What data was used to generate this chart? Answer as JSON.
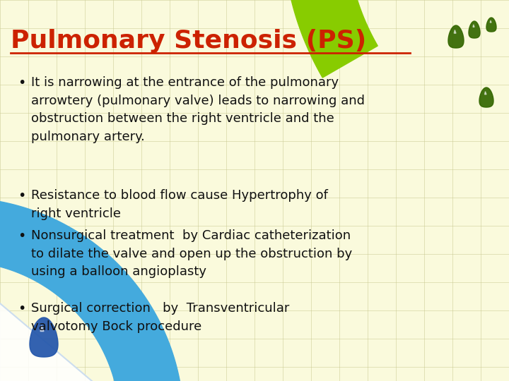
{
  "title": "Pulmonary Stenosis (PS)",
  "title_color": "#CC2200",
  "title_underline": true,
  "background_color": "#FAFADC",
  "grid_color": "#C8C890",
  "bullet1": "It is narrowing at the entrance of the pulmonary\narrowtery (pulmonary valve) leads to narrowing and\nobstruction between the right ventricle and the\npulmonary artery.",
  "bullet2": "Resistance to blood flow cause Hypertrophy of\nright ventricle",
  "bullet3": "Nonsurgical treatment  by Cardiac catheterization\nto dilate the valve and open up the obstruction by\nusing a balloon angioplasty",
  "bullet4": "Surgical correction   by  Transventricular\nvalvotomy Bock procedure",
  "text_color": "#111111",
  "top_curve_color": "#88CC00",
  "bottom_curve_color": "#44AADD",
  "drop_green": "#336600",
  "drop_blue": "#2255AA",
  "figsize": [
    7.2,
    5.4
  ],
  "dpi": 100
}
